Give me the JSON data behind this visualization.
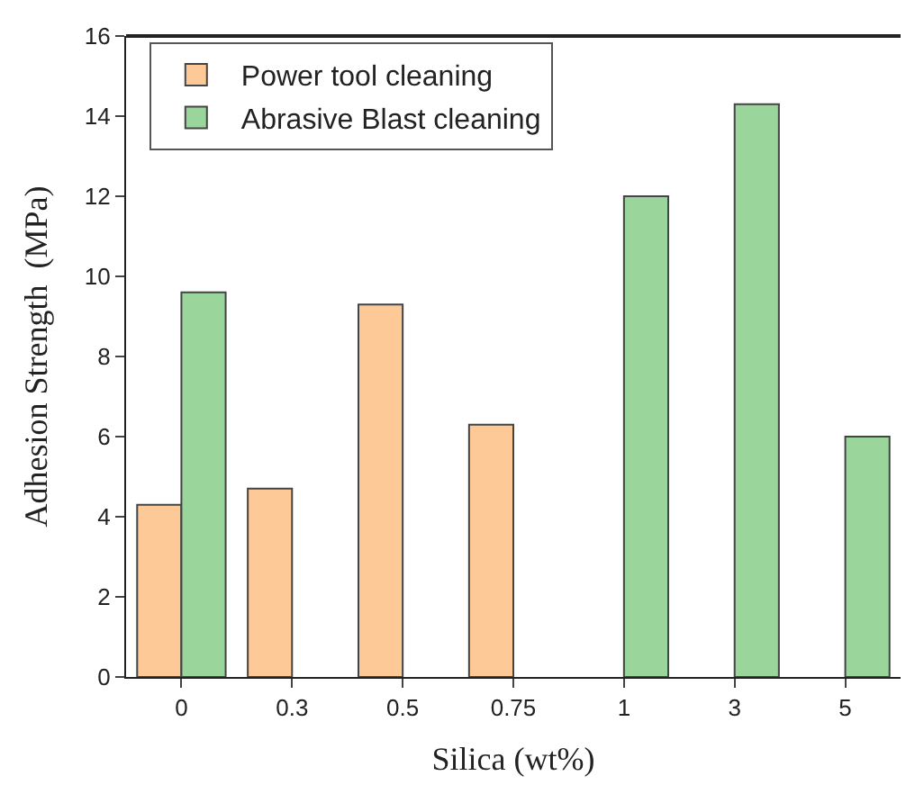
{
  "chart_data": {
    "type": "bar",
    "xlabel": "Silica (wt%)",
    "ylabel": "Adhesion Strength  (MPa)",
    "categories": [
      "0",
      "0.3",
      "0.5",
      "0.75",
      "1",
      "3",
      "5"
    ],
    "series": [
      {
        "name": "Power tool cleaning",
        "color": "#fdc997",
        "values": [
          4.3,
          4.7,
          9.3,
          6.3,
          null,
          null,
          null
        ]
      },
      {
        "name": "Abrasive Blast cleaning",
        "color": "#9ad59b",
        "values": [
          9.6,
          null,
          null,
          null,
          12.0,
          14.3,
          6.0
        ]
      }
    ],
    "ylim": [
      0,
      16
    ],
    "yticks": [
      0,
      2,
      4,
      6,
      8,
      10,
      12,
      14,
      16
    ],
    "legend": "top left"
  }
}
